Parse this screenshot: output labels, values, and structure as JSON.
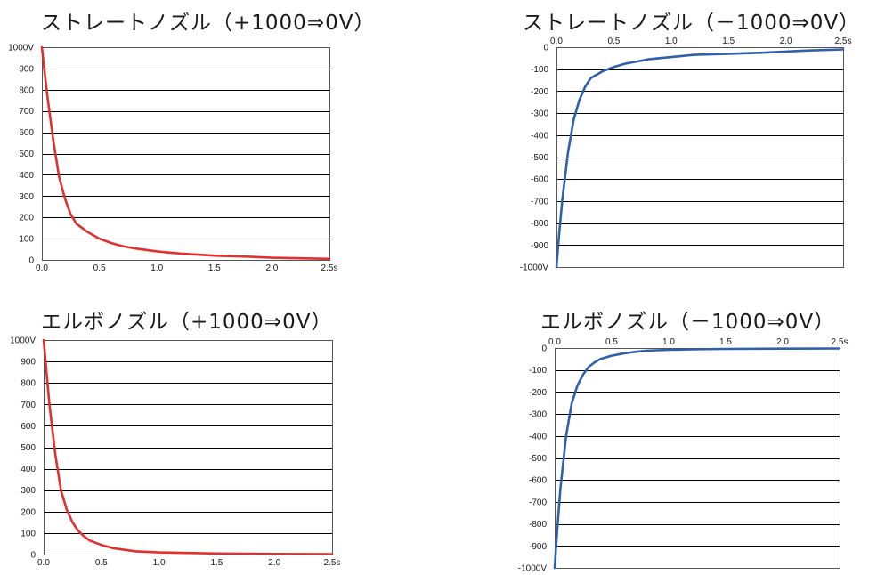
{
  "charts": {
    "colors": {
      "positive": "#e03030",
      "negative": "#2f5fad",
      "grid": "#000000"
    },
    "chart_data": [
      {
        "type": "line",
        "title": "ストレートノズル（+1000⇒0V）",
        "xlabel": "",
        "ylabel": "",
        "x_ticks": [
          "0.0",
          "0.5",
          "1.0",
          "1.5",
          "2.0",
          "2.5s"
        ],
        "y_ticks": [
          "0",
          "100",
          "200",
          "300",
          "400",
          "500",
          "600",
          "700",
          "800",
          "900",
          "1000V"
        ],
        "xlim": [
          0,
          2.5
        ],
        "ylim": [
          0,
          1000
        ],
        "grid": true,
        "series": [
          {
            "color": "#e03030",
            "x": [
              0.0,
              0.02,
              0.05,
              0.1,
              0.15,
              0.2,
              0.25,
              0.3,
              0.4,
              0.5,
              0.6,
              0.7,
              0.8,
              1.0,
              1.2,
              1.5,
              1.8,
              2.0,
              2.2,
              2.5
            ],
            "y": [
              1000,
              900,
              760,
              560,
              390,
              290,
              215,
              170,
              130,
              100,
              80,
              65,
              55,
              40,
              30,
              20,
              15,
              10,
              8,
              5
            ]
          }
        ]
      },
      {
        "type": "line",
        "title": "ストレートノズル（－1000⇒0V）",
        "xlabel": "",
        "ylabel": "",
        "x_ticks": [
          "0.0",
          "0.5",
          "1.0",
          "1.5",
          "2.0",
          "2.5s"
        ],
        "y_ticks": [
          "0",
          "-100",
          "-200",
          "-300",
          "-400",
          "-500",
          "-600",
          "-700",
          "-800",
          "-900",
          "-1000V"
        ],
        "xlim": [
          0,
          2.5
        ],
        "ylim": [
          -1000,
          0
        ],
        "grid": true,
        "series": [
          {
            "color": "#2f5fad",
            "x": [
              0.0,
              0.02,
              0.05,
              0.1,
              0.15,
              0.2,
              0.25,
              0.3,
              0.4,
              0.5,
              0.6,
              0.7,
              0.8,
              1.0,
              1.2,
              1.5,
              1.8,
              2.0,
              2.2,
              2.5
            ],
            "y": [
              -1000,
              -870,
              -700,
              -480,
              -330,
              -240,
              -180,
              -140,
              -110,
              -90,
              -75,
              -65,
              -55,
              -45,
              -35,
              -30,
              -25,
              -20,
              -15,
              -10
            ]
          }
        ]
      },
      {
        "type": "line",
        "title": "エルボノズル（+1000⇒0V）",
        "xlabel": "",
        "ylabel": "",
        "x_ticks": [
          "0.0",
          "0.5",
          "1.0",
          "1.5",
          "2.0",
          "2.5s"
        ],
        "y_ticks": [
          "0",
          "100",
          "200",
          "300",
          "400",
          "500",
          "600",
          "700",
          "800",
          "900",
          "1000V"
        ],
        "xlim": [
          0,
          2.5
        ],
        "ylim": [
          0,
          1000
        ],
        "grid": true,
        "series": [
          {
            "color": "#e03030",
            "x": [
              0.0,
              0.02,
              0.05,
              0.1,
              0.15,
              0.2,
              0.25,
              0.3,
              0.35,
              0.4,
              0.5,
              0.6,
              0.7,
              0.8,
              1.0,
              1.2,
              1.5,
              2.0,
              2.5
            ],
            "y": [
              1000,
              880,
              700,
              470,
              300,
              210,
              150,
              110,
              85,
              65,
              45,
              30,
              22,
              15,
              10,
              8,
              5,
              3,
              2
            ]
          }
        ]
      },
      {
        "type": "line",
        "title": "エルボノズル（－1000⇒0V）",
        "xlabel": "",
        "ylabel": "",
        "x_ticks": [
          "0.0",
          "0.5",
          "1.0",
          "1.5",
          "2.0",
          "2.5s"
        ],
        "y_ticks": [
          "0",
          "-100",
          "-200",
          "-300",
          "-400",
          "-500",
          "-600",
          "-700",
          "-800",
          "-900",
          "-1000V"
        ],
        "xlim": [
          0,
          2.5
        ],
        "ylim": [
          -1000,
          0
        ],
        "grid": true,
        "series": [
          {
            "color": "#2f5fad",
            "x": [
              0.0,
              0.02,
              0.05,
              0.1,
              0.15,
              0.2,
              0.25,
              0.3,
              0.35,
              0.4,
              0.5,
              0.6,
              0.7,
              0.8,
              1.0,
              1.2,
              1.5,
              2.0,
              2.5
            ],
            "y": [
              -1000,
              -840,
              -640,
              -400,
              -250,
              -170,
              -120,
              -85,
              -65,
              -50,
              -35,
              -25,
              -18,
              -12,
              -8,
              -6,
              -4,
              -3,
              -2
            ]
          }
        ]
      }
    ]
  }
}
